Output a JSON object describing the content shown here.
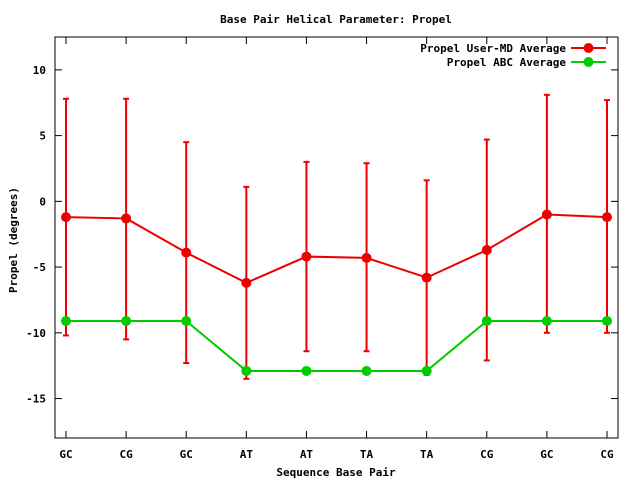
{
  "chart_data": {
    "type": "line",
    "title": "Base Pair Helical Parameter: Propel",
    "xlabel": "Sequence Base Pair",
    "ylabel": "Propel (degrees)",
    "categories": [
      "GC",
      "CG",
      "GC",
      "AT",
      "AT",
      "TA",
      "TA",
      "CG",
      "GC",
      "CG"
    ],
    "ylim": [
      -18,
      12.5
    ],
    "yticks": [
      -15,
      -10,
      -5,
      0,
      5,
      10
    ],
    "grid": false,
    "legend_position": "top-right",
    "series": [
      {
        "name": "Propel User-MD Average",
        "color": "#ee0000",
        "values": [
          -1.2,
          -1.3,
          -3.9,
          -6.2,
          -4.2,
          -4.3,
          -5.8,
          -3.7,
          -1.0,
          -1.2
        ],
        "error_upper": [
          7.8,
          7.8,
          4.5,
          1.1,
          3.0,
          2.9,
          1.6,
          4.7,
          8.1,
          7.7
        ],
        "error_lower": [
          -10.2,
          -10.5,
          -12.3,
          -13.5,
          -11.4,
          -11.4,
          -13.2,
          -12.1,
          -10.0,
          -10.0
        ]
      },
      {
        "name": "Propel ABC Average",
        "color": "#00cc00",
        "values": [
          -9.1,
          -9.1,
          -9.1,
          -12.9,
          -12.9,
          -12.9,
          -12.9,
          -9.1,
          -9.1,
          -9.1
        ]
      }
    ]
  }
}
